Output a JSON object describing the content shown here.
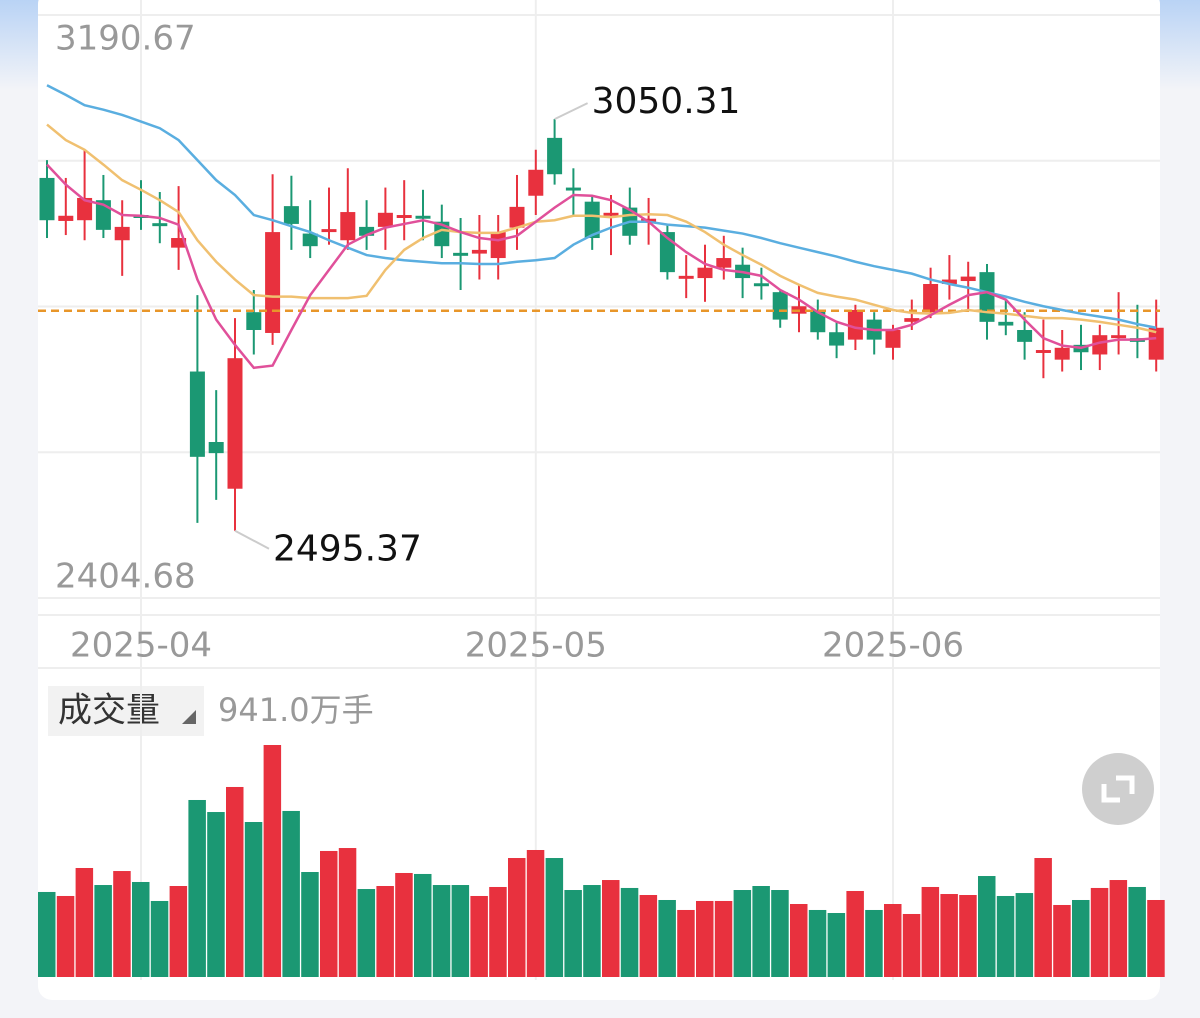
{
  "chart_data": {
    "type": "candlestick",
    "categories": [
      null,
      null,
      null,
      null,
      null,
      "2025-04",
      null,
      null,
      null,
      null,
      null,
      null,
      null,
      null,
      null,
      null,
      null,
      null,
      null,
      null,
      null,
      null,
      null,
      null,
      null,
      null,
      "2025-05",
      null,
      null,
      null,
      null,
      null,
      null,
      null,
      null,
      null,
      null,
      null,
      null,
      null,
      null,
      null,
      null,
      null,
      null,
      "2025-06",
      null,
      null,
      null,
      null,
      null,
      null,
      null,
      null,
      null,
      null,
      null,
      null,
      null,
      null
    ],
    "open": [
      2971,
      2913,
      2914,
      2941,
      2887,
      2921,
      2910,
      2877,
      2710,
      2615,
      2552,
      2790,
      2762,
      2933,
      2896,
      2898,
      2887,
      2905,
      2905,
      2917,
      2920,
      2912,
      2870,
      2869,
      2863,
      2904,
      2947,
      3025,
      2958,
      2939,
      2920,
      2931,
      2912,
      2898,
      2835,
      2836,
      2850,
      2854,
      2829,
      2817,
      2788,
      2793,
      2763,
      2753,
      2780,
      2742,
      2777,
      2790,
      2828,
      2832,
      2844,
      2777,
      2766,
      2735,
      2726,
      2746,
      2733,
      2755,
      2755,
      2726
    ],
    "high": [
      2995,
      2971,
      3009,
      2975,
      2941,
      2968,
      2952,
      2960,
      2813,
      2685,
      2782,
      2820,
      2976,
      2974,
      2941,
      2958,
      2984,
      2941,
      2958,
      2968,
      2955,
      2935,
      2917,
      2921,
      2921,
      2975,
      3009,
      3050.31,
      2984,
      2948,
      2948,
      2958,
      2944,
      2908,
      2867,
      2881,
      2893,
      2877,
      2850,
      2820,
      2827,
      2807,
      2777,
      2800,
      2790,
      2773,
      2807,
      2850,
      2867,
      2858,
      2855,
      2807,
      2790,
      2780,
      2766,
      2773,
      2773,
      2817,
      2800,
      2807
    ],
    "low": [
      2890,
      2894,
      2887,
      2890,
      2839,
      2901,
      2883,
      2847,
      2506,
      2537,
      2495.37,
      2733,
      2746,
      2874,
      2863,
      2881,
      2874,
      2874,
      2874,
      2887,
      2887,
      2863,
      2820,
      2834,
      2834,
      2874,
      2921,
      2962,
      2921,
      2874,
      2867,
      2881,
      2881,
      2834,
      2809,
      2804,
      2834,
      2809,
      2807,
      2769,
      2763,
      2753,
      2728,
      2739,
      2733,
      2726,
      2766,
      2782,
      2807,
      2793,
      2753,
      2759,
      2726,
      2701,
      2710,
      2712,
      2712,
      2733,
      2728,
      2710
    ],
    "close": [
      2914,
      2920,
      2944,
      2901,
      2905,
      2917,
      2906,
      2890,
      2595,
      2600,
      2728,
      2766,
      2898,
      2909,
      2879,
      2902,
      2925,
      2893,
      2924,
      2921,
      2916,
      2879,
      2866,
      2874,
      2898,
      2932,
      2982,
      2976,
      2954,
      2890,
      2924,
      2893,
      2916,
      2844,
      2839,
      2850,
      2863,
      2836,
      2825,
      2780,
      2798,
      2763,
      2745,
      2793,
      2753,
      2766,
      2782,
      2828,
      2834,
      2838,
      2777,
      2772,
      2750,
      2739,
      2742,
      2736,
      2759,
      2759,
      2750,
      2769
    ],
    "up_color": "#e8313e",
    "down_color": "#1b9873",
    "ylim": [
      2404.68,
      3190.67
    ],
    "yticks": [
      3190.67,
      2404.68
    ],
    "grid_rows": 4,
    "ma_lines": [
      {
        "color": "#5aaee0",
        "values": [
          3096,
          3083,
          3069,
          3063,
          3056,
          3047,
          3038,
          3022,
          2995,
          2968,
          2948,
          2921,
          2914,
          2906,
          2898,
          2887,
          2877,
          2867,
          2863,
          2860,
          2858,
          2856,
          2856,
          2855,
          2855,
          2858,
          2860,
          2863,
          2881,
          2894,
          2904,
          2912,
          2912,
          2908,
          2906,
          2904,
          2900,
          2896,
          2890,
          2883,
          2877,
          2871,
          2865,
          2858,
          2852,
          2847,
          2842,
          2834,
          2828,
          2823,
          2817,
          2811,
          2804,
          2798,
          2793,
          2788,
          2784,
          2780,
          2774,
          2769
        ]
      },
      {
        "color": "#f0c070",
        "values": [
          3043,
          3022,
          3009,
          2989,
          2968,
          2955,
          2941,
          2925,
          2887,
          2858,
          2834,
          2813,
          2811,
          2811,
          2809,
          2809,
          2809,
          2812,
          2847,
          2874,
          2890,
          2901,
          2898,
          2897,
          2897,
          2904,
          2912,
          2914,
          2920,
          2920,
          2918,
          2921,
          2922,
          2921,
          2912,
          2898,
          2881,
          2867,
          2854,
          2839,
          2827,
          2816,
          2811,
          2807,
          2800,
          2793,
          2789,
          2788,
          2789,
          2793,
          2790,
          2788,
          2785,
          2782,
          2782,
          2780,
          2777,
          2773,
          2769,
          2763
        ]
      },
      {
        "color": "#e0509a",
        "values": [
          2989,
          2962,
          2941,
          2935,
          2921,
          2920,
          2917,
          2908,
          2834,
          2780,
          2746,
          2715,
          2718,
          2766,
          2813,
          2847,
          2881,
          2894,
          2904,
          2909,
          2914,
          2908,
          2898,
          2890,
          2887,
          2893,
          2912,
          2931,
          2948,
          2947,
          2941,
          2928,
          2912,
          2890,
          2871,
          2855,
          2847,
          2844,
          2839,
          2820,
          2807,
          2790,
          2777,
          2769,
          2766,
          2766,
          2773,
          2786,
          2800,
          2813,
          2817,
          2807,
          2780,
          2755,
          2745,
          2742,
          2749,
          2753,
          2753,
          2755
        ]
      }
    ],
    "ref_line": {
      "value": 2792,
      "color": "#e8962a"
    },
    "volume": {
      "label": "成交量",
      "readout": "941.0万手",
      "values": [
        1039,
        990,
        1332,
        1124,
        1295,
        1161,
        929,
        1112,
        2163,
        2016,
        2322,
        1894,
        2835,
        2029,
        1283,
        1540,
        1576,
        1075,
        1112,
        1271,
        1259,
        1124,
        1124,
        990,
        1100,
        1454,
        1552,
        1454,
        1063,
        1124,
        1185,
        1088,
        1002,
        941,
        819,
        929,
        929,
        1063,
        1112,
        1063,
        892,
        819,
        782,
        1051,
        819,
        892,
        770,
        1100,
        1014,
        1002,
        1234,
        990,
        1026,
        1454,
        880,
        941,
        1088,
        1185,
        1100,
        941
      ]
    }
  }
}
